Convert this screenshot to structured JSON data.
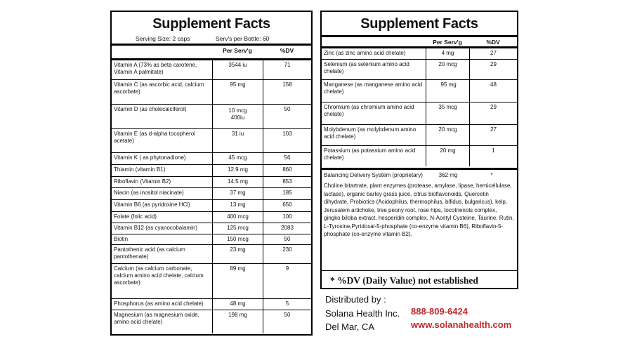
{
  "left_panel": {
    "title": "Supplement Facts",
    "serving_size": "Serving Size: 2 caps",
    "servings_per_bottle": "Serv's per Bottle:  60",
    "header": {
      "amount": "Per Serv'g",
      "dv": "%DV"
    },
    "rows": [
      {
        "name": "Vitamin A (73% as beta carotene, Vitamin A palmitate)",
        "amount": "3544 iu",
        "dv": "71"
      },
      {
        "name": "Vitamin C (as ascorbic acid, calcium ascorbate)",
        "amount": "95 mg",
        "dv": "158"
      },
      {
        "name": "Vitamin D (as cholecalciferol)",
        "amount": [
          "10 mcg",
          "400iu"
        ],
        "dv": "50"
      },
      {
        "name": "Vitamin E (as d-alpha tocopherol acetate)",
        "amount": "31 iu",
        "dv": "103"
      },
      {
        "name": "Vitamin K ( as phytonadione)",
        "amount": "45 mcg",
        "dv": "56"
      },
      {
        "name": "Thiamin (vitamin B1)",
        "amount": "12.9 mg",
        "dv": "860"
      },
      {
        "name": "Riboflavin (Vitamin B2)",
        "amount": "14.5 mg",
        "dv": "853"
      },
      {
        "name": "Niacin (as inositol niacinate)",
        "amount": "37 mg",
        "dv": "185"
      },
      {
        "name": "Vitamin B6 (as pyridoxine HCl)",
        "amount": "13 mg",
        "dv": "650"
      },
      {
        "name": "Folate (folic acid)",
        "amount": "400 mcg",
        "dv": "100"
      },
      {
        "name": "Vitamin B12 (as cyanocobalamin)",
        "amount": "125 mcg",
        "dv": "2083"
      },
      {
        "name": "Biotin",
        "amount": "150 mcg",
        "dv": "50"
      },
      {
        "name": "Pantothenic acid (as calcium pantothenate)",
        "amount": "23 mg",
        "dv": "230"
      },
      {
        "name": "Calcium (as  calcium carbonate, calcium amino acid chelate, calcium ascorbate)",
        "amount": "89 mg",
        "dv": "9"
      },
      {
        "name": "Phosphorus (as amino acid chelate)",
        "amount": "48 mg",
        "dv": "5"
      },
      {
        "name": "Magnesium (as magnesium oxide, amino acid chelate)",
        "amount": "198 mg",
        "dv": "50"
      }
    ]
  },
  "right_panel": {
    "title": "Supplement Facts",
    "header": {
      "amount": "Per Serv'g",
      "dv": "%DV"
    },
    "rows": [
      {
        "name": "Zinc (as zinc amino acid chelate)",
        "amount": "4 mg",
        "dv": "27"
      },
      {
        "name": "Selenium (as selenium amino acid chelate)",
        "amount": "20 mcg",
        "dv": "29"
      },
      {
        "name": "Manganese (as manganese amino acid chelate)",
        "amount": ".95 mg",
        "dv": "48"
      },
      {
        "name": "Chromium (as chromium amino acid chelate)",
        "amount": "35 mcg",
        "dv": "29"
      },
      {
        "name": "Molybdenum (as molybdenum amino acid chelate)",
        "amount": "20 mcg",
        "dv": "27"
      },
      {
        "name": "Potassium (as potassium amino acid chelate)",
        "amount": "20 mg",
        "dv": "1"
      }
    ],
    "blend": {
      "name": "Balancing Delivery System (proprietary)",
      "amount": "362 mg",
      "dv": "*",
      "ingredients": "Choline bitartrate, plant enzymes (protease, amylase, lipase, hemicellulase, lactase), organic barley grass juice, citrus bioflavonoids, Quercetin dihydrate, Probiotics (Acidophilus, thermophilus, bifidus, bulgaricus), kelp, Jerusalem artichoke, tree peony root, rose hips, tocotrienols complex, gingko biloba extract, hesperidin complex, N-Acetyl Cysteine, Taurine, Rutin, L-Tyrosine,Pyridoxal-5-phosphate (co-enzyme vitamin B6), Riboflavin-5-phosphate (co-enzyme vitamin B2)."
    },
    "footnote": "*  %DV (Daily Value) not established"
  },
  "distributor": {
    "label": "Distributed by :",
    "company": "Solana Health Inc.",
    "location": "Del Mar, CA",
    "phone": "888-809-6424",
    "website": "www.solanahealth.com"
  }
}
